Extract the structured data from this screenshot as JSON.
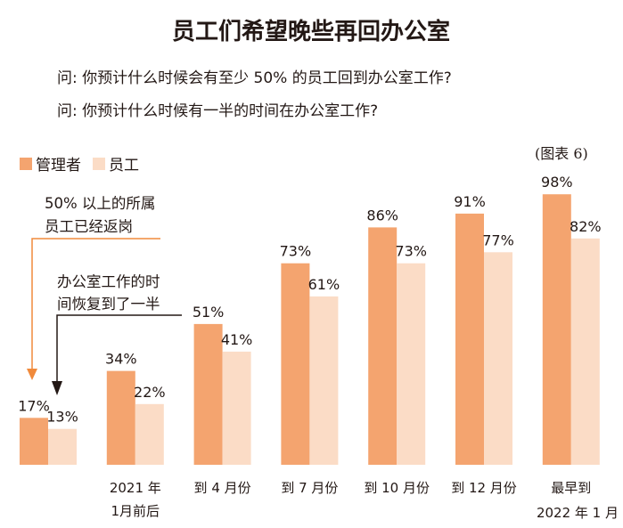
{
  "header": {
    "title": "员工们希望晚些再回办公室",
    "question_1": "问: 你预计什么时候会有至少 50% 的员工回到办公室工作?",
    "question_2": "问: 你预计什么时候有一半的时间在办公室工作?",
    "figure_label": "(图表 6)"
  },
  "annotations": {
    "manager_note_line1": "50% 以上的所属",
    "manager_note_line2": "员工已经返岗",
    "employee_note_line1": "办公室工作的时",
    "employee_note_line2": "间恢复到了一半"
  },
  "colors": {
    "manager": "#f4a46f",
    "employee": "#fbdcc6",
    "arrow_manager": "#f08a3c",
    "arrow_employee": "#231815"
  },
  "chart_data": {
    "type": "bar",
    "title": "员工们希望晚些再回办公室",
    "legend_position": "top-left",
    "grid": false,
    "ylim": [
      0,
      100
    ],
    "categories": [
      {
        "line1": "",
        "line2": ""
      },
      {
        "line1": "2021 年",
        "line2": "1月前后"
      },
      {
        "line1": "到 4 月份",
        "line2": ""
      },
      {
        "line1": "到 7 月份",
        "line2": ""
      },
      {
        "line1": "到 10 月份",
        "line2": ""
      },
      {
        "line1": "到 12 月份",
        "line2": ""
      },
      {
        "line1": "最早到",
        "line2": "2022 年 1 月"
      }
    ],
    "series": [
      {
        "name": "管理者",
        "values": [
          17,
          34,
          51,
          73,
          86,
          91,
          98
        ],
        "labels": [
          "17%",
          "34%",
          "51%",
          "73%",
          "86%",
          "91%",
          "98%"
        ]
      },
      {
        "name": "员工",
        "values": [
          13,
          22,
          41,
          61,
          73,
          77,
          82
        ],
        "labels": [
          "13%",
          "22%",
          "41%",
          "61%",
          "73%",
          "77%",
          "82%"
        ]
      }
    ]
  }
}
